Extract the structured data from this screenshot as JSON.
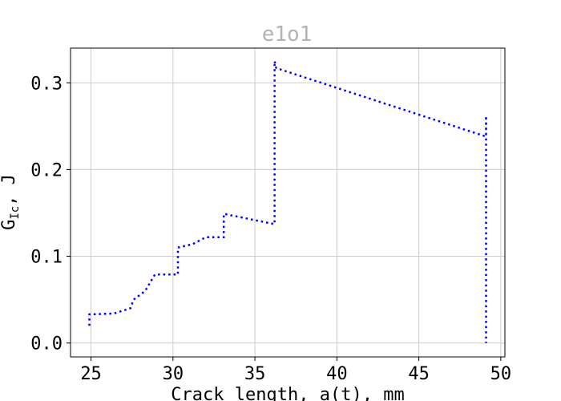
{
  "chart_data": {
    "type": "line",
    "title": "e1o1",
    "xlabel": "Crack length, a(t), mm",
    "ylabel": "G_Ic, J",
    "xlim": [
      23.75,
      50.25
    ],
    "ylim": [
      -0.016,
      0.34
    ],
    "x_ticks": [
      25,
      30,
      35,
      40,
      45,
      50
    ],
    "x_tick_labels": [
      "25",
      "30",
      "35",
      "40",
      "45",
      "50"
    ],
    "y_ticks": [
      0.0,
      0.1,
      0.2,
      0.3
    ],
    "y_tick_labels": [
      "0.0",
      "0.1",
      "0.2",
      "0.3"
    ],
    "grid": true,
    "series": [
      {
        "color": "#0000ff",
        "line_style": "dotted",
        "x": [
          24.9,
          24.9,
          26.4,
          27.4,
          27.6,
          28.3,
          28.9,
          30.3,
          30.3,
          31.2,
          32.0,
          33.1,
          33.1,
          36.2,
          36.2,
          36.3,
          49.1,
          49.1,
          49.1
        ],
        "y": [
          0.02,
          0.033,
          0.034,
          0.04,
          0.05,
          0.06,
          0.079,
          0.079,
          0.11,
          0.114,
          0.122,
          0.122,
          0.149,
          0.137,
          0.325,
          0.317,
          0.238,
          0.262,
          0.0
        ]
      }
    ]
  }
}
